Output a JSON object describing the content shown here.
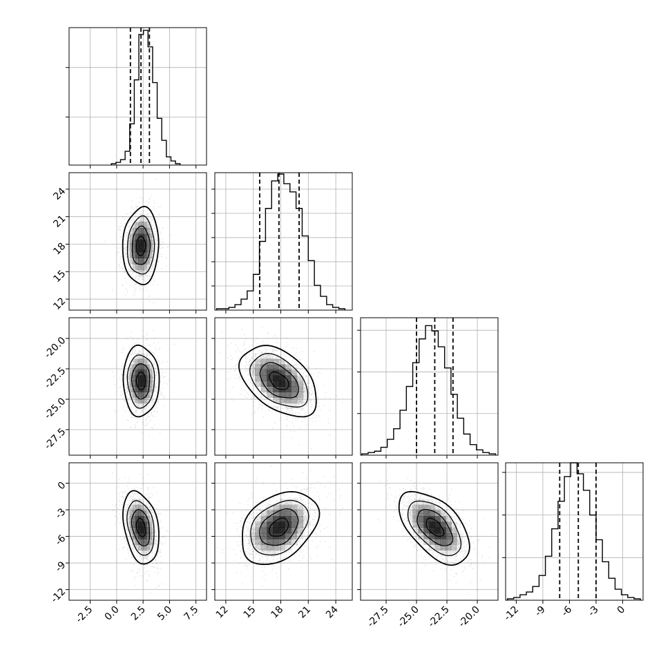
{
  "chart_data": {
    "type": "corner",
    "title": "",
    "parameters": [
      {
        "ticks": [
          "-2.5",
          "0.0",
          "2.5",
          "5.0",
          "7.5"
        ],
        "tick_values": [
          -2.5,
          0,
          2.5,
          5,
          7.5
        ],
        "range": [
          -4.5,
          8.5
        ],
        "hist_bins": [
          1,
          2,
          4,
          10,
          30,
          62,
          95,
          98,
          86,
          60,
          34,
          18,
          6,
          3,
          1
        ],
        "hist_bin_range": [
          -0.5,
          6.0
        ],
        "hist_ymax": 100,
        "hist_grid_lines": [
          0,
          35,
          71
        ],
        "quantiles": [
          1.3,
          2.3,
          3.1
        ],
        "mean": 2.3,
        "std": 0.85
      },
      {
        "ticks": [
          "12",
          "15",
          "18",
          "21",
          "24"
        ],
        "tick_values": [
          12,
          15,
          18,
          21,
          24
        ],
        "range": [
          10.8,
          25.8
        ],
        "hist_bins": [
          1,
          1,
          2,
          4,
          8,
          14,
          26,
          50,
          74,
          94,
          99,
          92,
          86,
          74,
          54,
          36,
          18,
          10,
          4,
          2,
          1
        ],
        "hist_bin_range": [
          11.0,
          25.0
        ],
        "hist_ymax": 100,
        "hist_grid_lines": [
          0,
          17.6,
          35.2,
          52.8,
          70.4,
          88
        ],
        "quantiles": [
          15.7,
          17.8,
          20.0
        ],
        "mean": 17.8,
        "std": 2.1
      },
      {
        "ticks": [
          "-27.5",
          "-25.0",
          "-22.5",
          "-20.0"
        ],
        "tick_values": [
          -27.5,
          -25.0,
          -22.5,
          -20.0
        ],
        "range": [
          -29.6,
          -18.3
        ],
        "hist_bins": [
          1,
          2,
          3,
          6,
          12,
          20,
          34,
          52,
          70,
          88,
          98,
          94,
          82,
          66,
          46,
          28,
          16,
          8,
          4,
          2,
          1
        ],
        "hist_bin_range": [
          -29.5,
          -18.5
        ],
        "hist_ymax": 104,
        "hist_grid_lines": [
          0,
          31.5,
          63,
          94.5
        ],
        "quantiles": [
          -25.0,
          -23.5,
          -22.0
        ],
        "mean": -23.5,
        "std": 1.45
      },
      {
        "ticks": [
          "-12",
          "-9",
          "-6",
          "-3",
          "0"
        ],
        "tick_values": [
          -12,
          -9,
          -6,
          -3,
          0
        ],
        "range": [
          -13.2,
          2.3
        ],
        "hist_bins": [
          1,
          2,
          4,
          6,
          10,
          18,
          32,
          52,
          72,
          90,
          100,
          92,
          80,
          62,
          44,
          28,
          16,
          8,
          4,
          2,
          1
        ],
        "hist_bin_range": [
          -13.0,
          2.0
        ],
        "hist_ymax": 100,
        "hist_grid_lines": [
          0,
          31,
          62,
          93
        ],
        "quantiles": [
          -7.1,
          -5.0,
          -3.0
        ],
        "mean": -5.0,
        "std": 2.05
      }
    ],
    "correlations": [
      [
        1,
        0.05,
        -0.02,
        -0.3
      ],
      [
        0.05,
        1,
        -0.45,
        0.35
      ],
      [
        -0.02,
        -0.45,
        1,
        -0.55
      ],
      [
        -0.3,
        0.35,
        -0.55,
        1
      ]
    ],
    "contour_levels_sigma": [
      0.5,
      1.0,
      1.5,
      2.0
    ],
    "grid": true,
    "colors": {
      "hist_line": "#000000",
      "grid": "#b0b0b0",
      "scatter_points": "#555555",
      "density": "#000000"
    }
  }
}
